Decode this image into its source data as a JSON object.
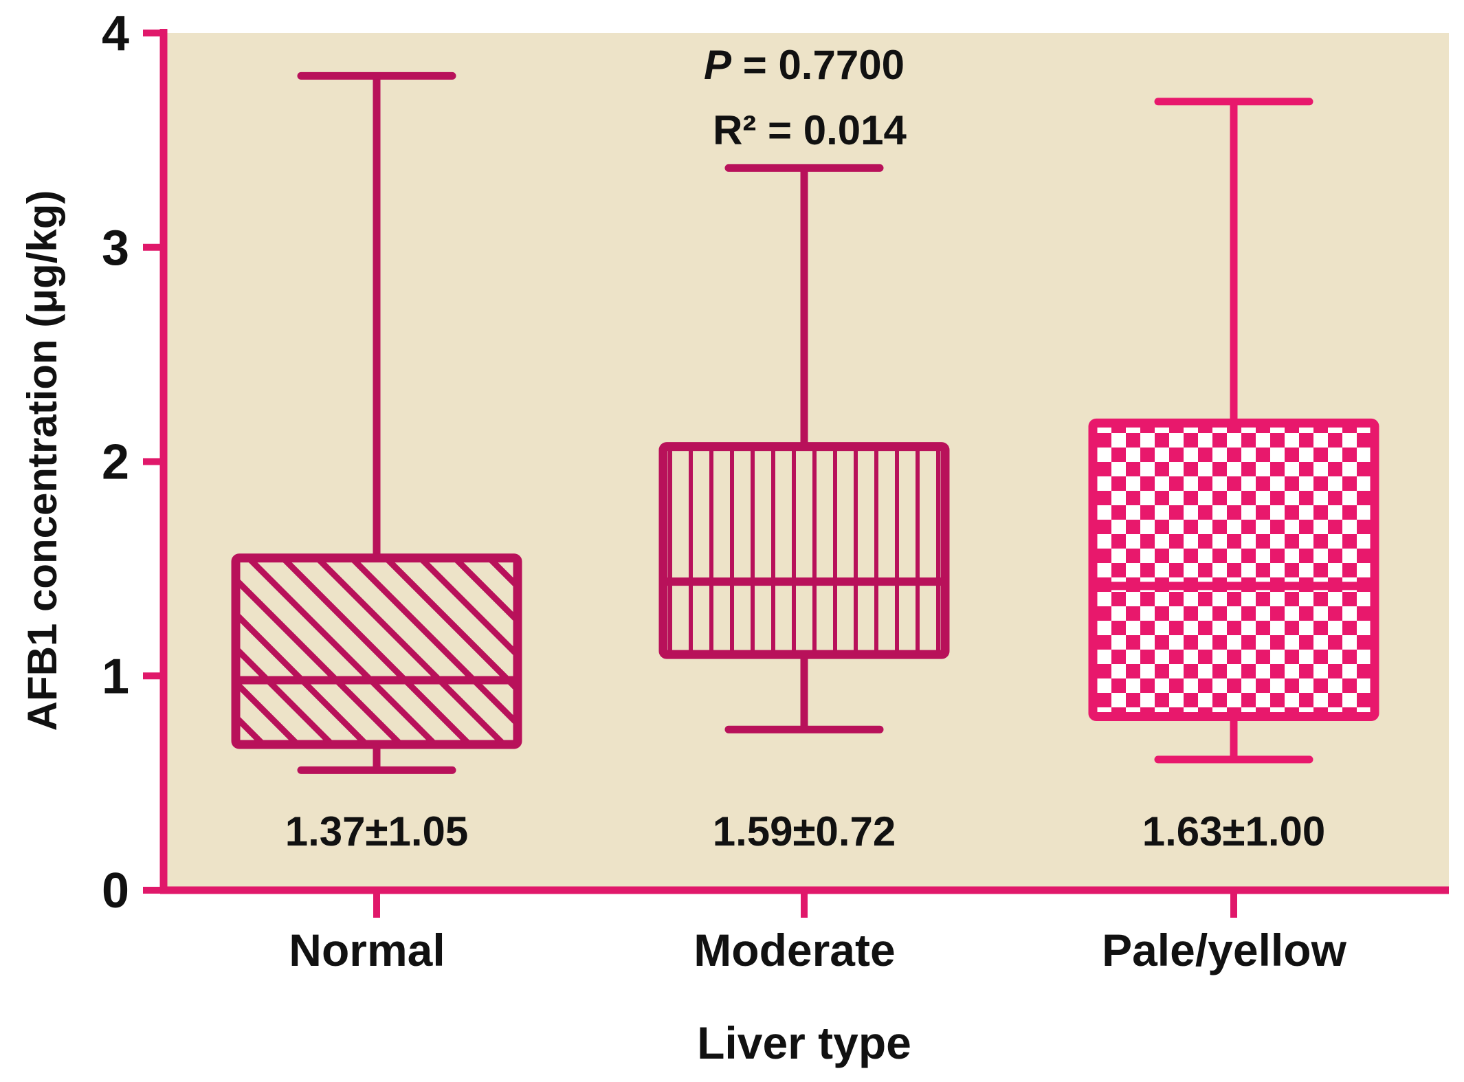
{
  "chart_data": {
    "type": "box",
    "xlabel": "Liver type",
    "ylabel": "AFB1 concentration (μg/kg)",
    "ylim": [
      0,
      4
    ],
    "yticks": [
      0,
      1,
      2,
      3,
      4
    ],
    "ytick_labels": [
      "0",
      "1",
      "2",
      "3",
      "4"
    ],
    "grid": false,
    "annotation": {
      "p_prefix": "P",
      "p_text": " = 0.7700",
      "r2_text": "R² = 0.014"
    },
    "categories": [
      "Normal",
      "Moderate",
      "Pale/yellow"
    ],
    "boxes": [
      {
        "label": "Normal",
        "min": 0.56,
        "q1": 0.68,
        "median": 0.98,
        "q3": 1.55,
        "max": 3.8,
        "mean_sd": "1.37±1.05",
        "pattern": "diagonal"
      },
      {
        "label": "Moderate",
        "min": 0.75,
        "q1": 1.1,
        "median": 1.44,
        "q3": 2.07,
        "max": 3.37,
        "mean_sd": "1.59±0.72",
        "pattern": "vertical"
      },
      {
        "label": "Pale/yellow",
        "min": 0.61,
        "q1": 0.81,
        "median": 1.42,
        "q3": 2.18,
        "max": 3.68,
        "mean_sd": "1.63±1.00",
        "pattern": "checker"
      }
    ]
  },
  "colors": {
    "plot_background": "#ede3c8",
    "axis": "#e0186a",
    "box_dark": "#b8115a",
    "box_bright": "#e8186c",
    "text": "#111111"
  }
}
